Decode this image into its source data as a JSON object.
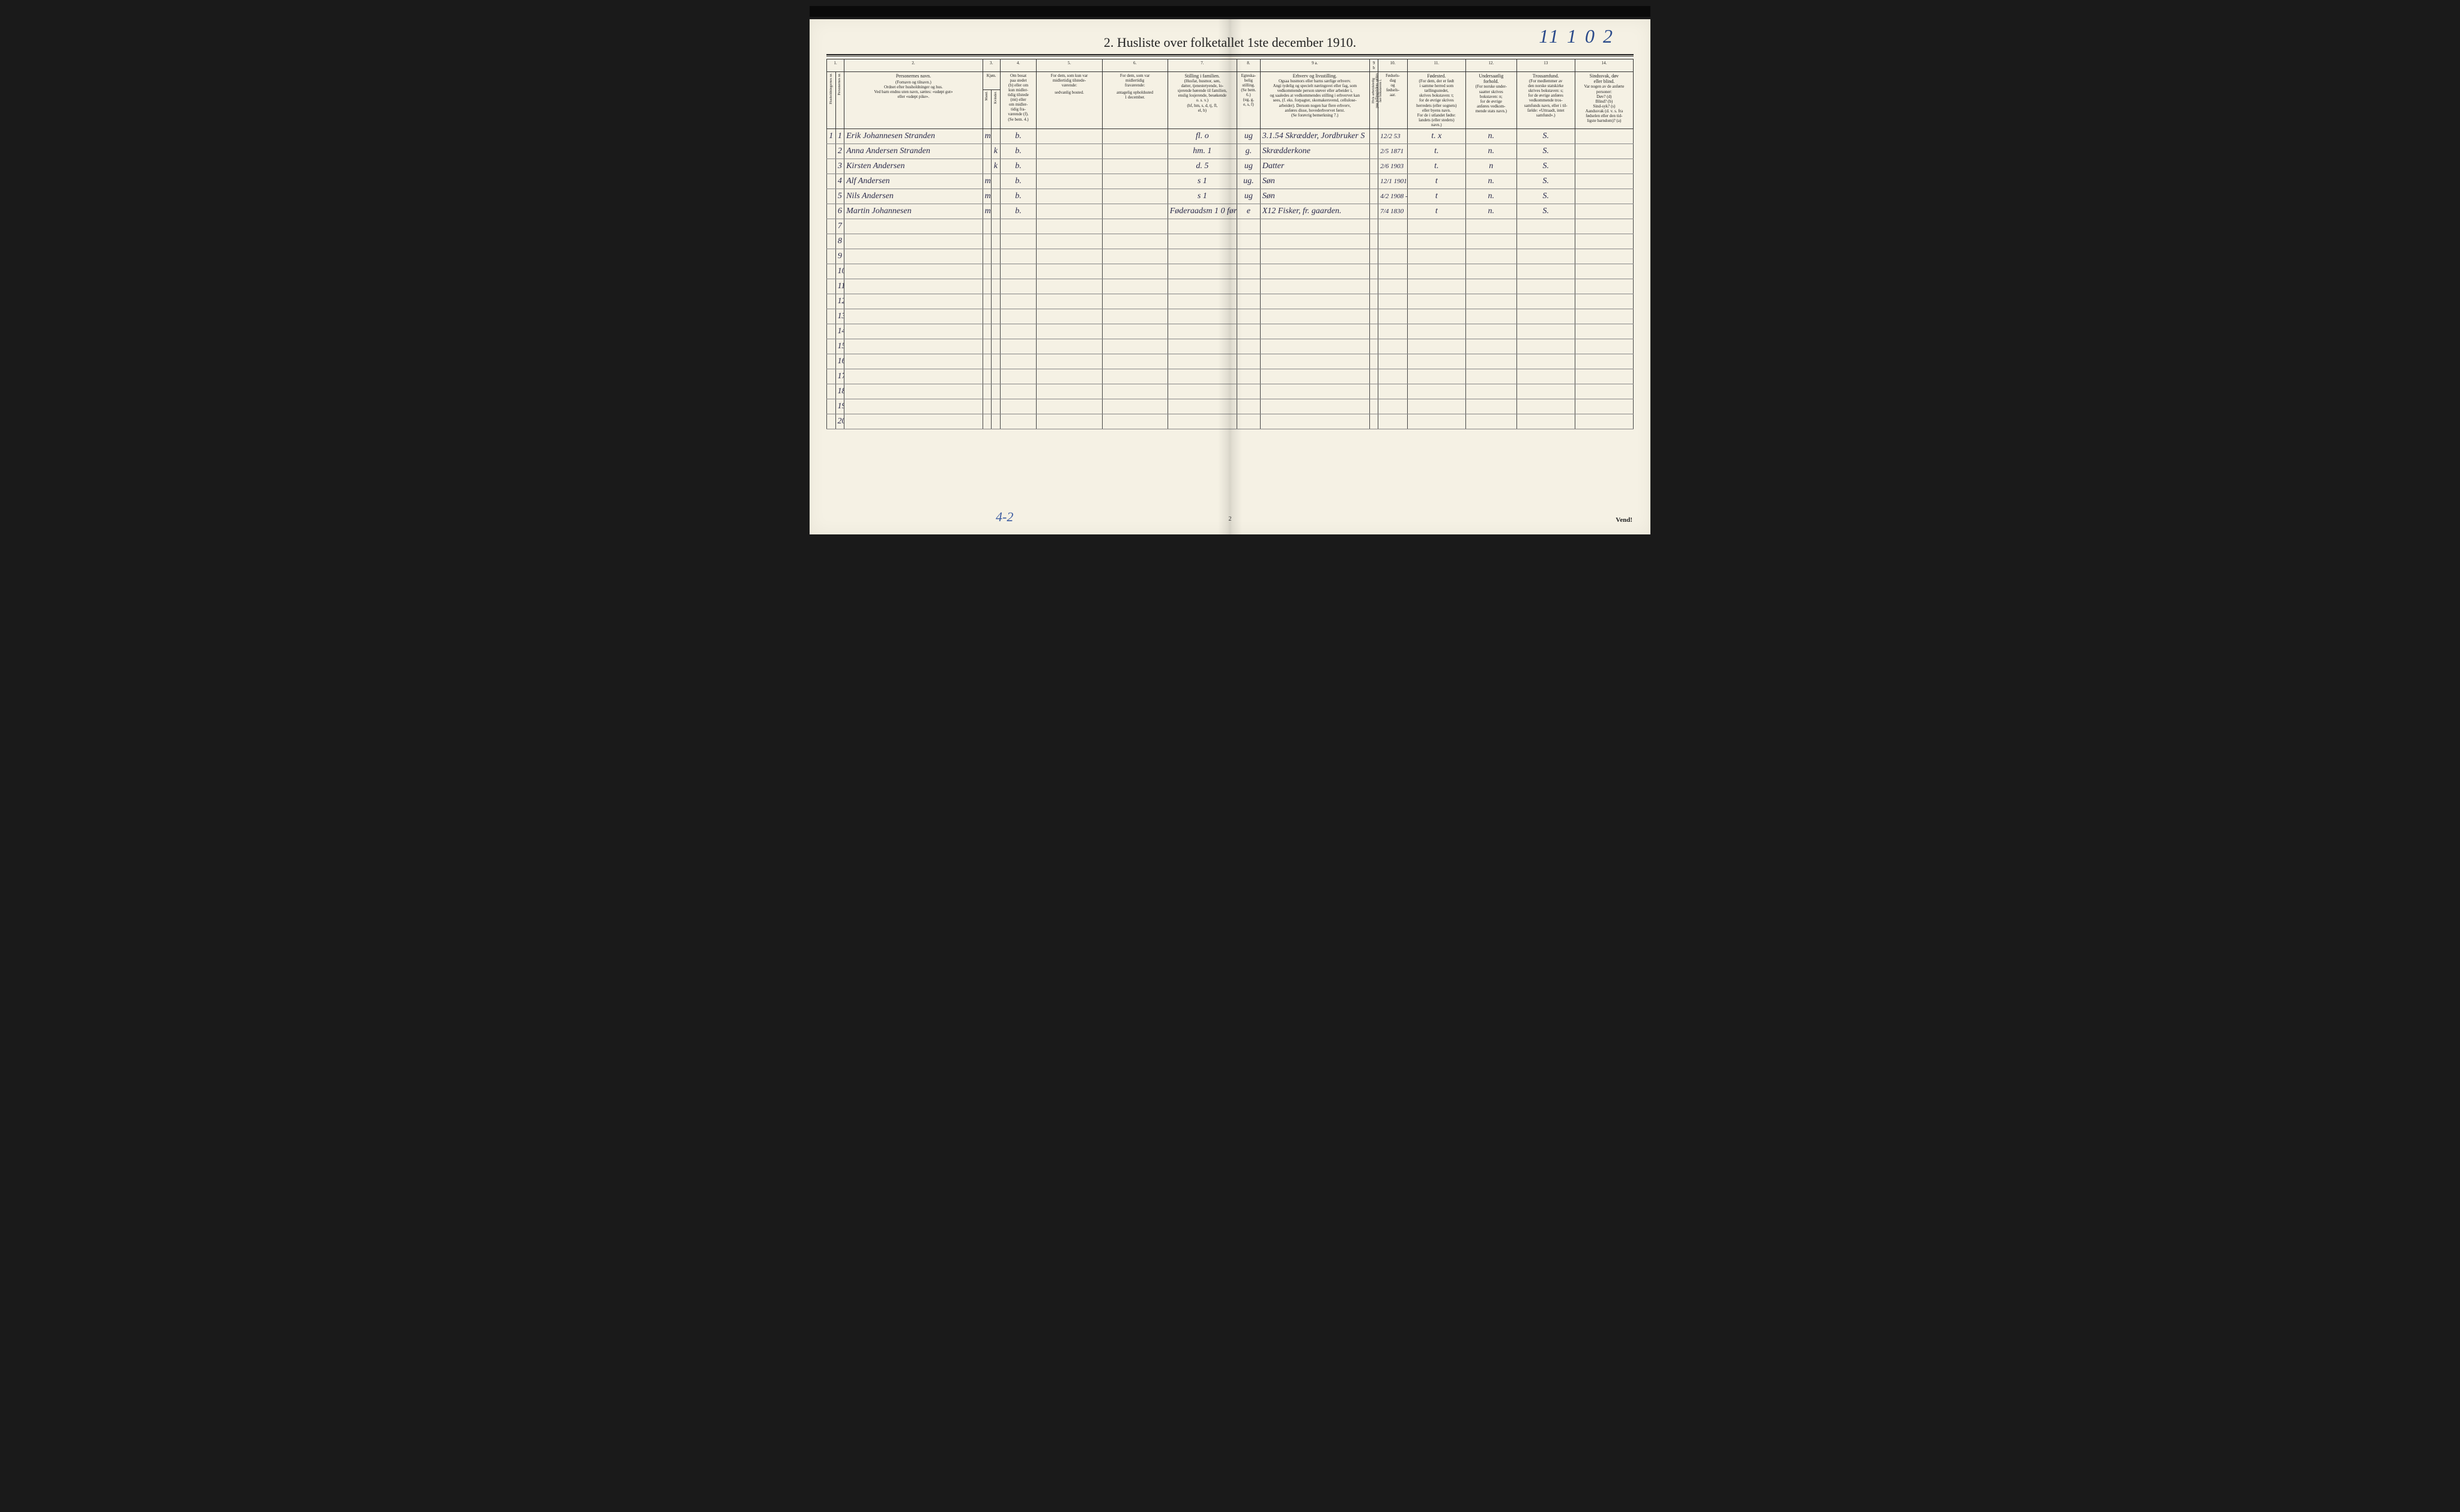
{
  "document": {
    "title": "2.  Husliste over folketallet 1ste december 1910.",
    "handwritten_top_right": "11 1 0 2",
    "footer_handwritten": "4-2",
    "footer_page_number": "2",
    "vend_label": "Vend!"
  },
  "colors": {
    "paper": "#f5f1e4",
    "ink_print": "#222222",
    "ink_handwriting": "#2a2a4a",
    "ink_blue": "#2a4a8a",
    "grid_line": "#444444",
    "background": "#1a1a1a"
  },
  "column_numbers": [
    "1.",
    "",
    "2.",
    "3.",
    "",
    "4.",
    "5.",
    "6.",
    "7.",
    "8.",
    "9 a.",
    "9 b",
    "10.",
    "11.",
    "12.",
    "13",
    "14."
  ],
  "headers": {
    "col1_vert": "Husholdningernes nr.",
    "col1b_vert": "Personernes nr.",
    "col2_title": "Personernes navn.",
    "col2_sub": "(Fornavn og tilnavn.)\nOrdnet efter husholdninger og hus.\nVed barn endnu uten navn, sættes: «udøpt gut»\neller «udøpt pike».",
    "col3_title": "Kjøn.",
    "col3_m": "Mand.",
    "col3_k": "Kvinder.",
    "col3_mk": "m.  k.",
    "col4_title": "Om bosat\npaa stedet\n(b) eller om\nkun midler-\ntidig tilstede\n(mt) eller\nom midler-\ntidig fra-\nværende (f).\n(Se bem. 4.)",
    "col5_title": "For dem, som kun var\nmidlertidig tilstede-\nværende:",
    "col5_sub": "sedvanlig bosted.",
    "col6_title": "For dem, som var\nmidlertidig\nfraværende:",
    "col6_sub": "antagelig opholdssted\n1 december.",
    "col7_title": "Stilling i familien.",
    "col7_sub": "(Husfar, husmor, søn,\ndatter, tjenestetyende, lo-\nsjerende hørende til familien,\nenslig losjerende, besøkende\no. s. v.)\n(hf, hm, s, d, tj, fl,\nel, b)",
    "col8_title": "Egteska-\nbelig\nstilling.",
    "col8_sub": "(Se bem. 6.)\n(ug, g,\ne, s, f)",
    "col9a_title": "Erhverv og livsstilling.",
    "col9a_sub": "Ogsaa husmors eller barns særlige erhverv.\nAngi tydelig og specielt næringsvei eller fag, som\nvedkommende person utøver eller arbeider i,\nog saaledes at vedkommendes stilling i erhvervet kan\nsees, (f. eks. forpagter, skomakersvend, cellulose-\narbeider). Dersom nogen har flere erhverv,\nanføres disse, hovederhvervet først.\n(Se forøvrig bemerkning 7.)",
    "col9b_vert": "Hvis arbeidsledig\npaa tellingstidens sættes\nher bokstaven l.",
    "col10_title": "Fødsels-\ndag\nog\nfødsels-\naar.",
    "col11_title": "Fødested.",
    "col11_sub": "(For dem, der er født\ni samme herred som\ntællingsstedet,\nskrives bokstaven: t;\nfor de øvrige skrives\nherredets (eller sognets)\neller byens navn.\nFor de i utlandet fødte:\nlandets (eller stedets)\nnavn.)",
    "col12_title": "Undersaatlig\nforhold.",
    "col12_sub": "(For norske under-\nsaatter skrives\nbokstaven: n;\nfor de øvrige\nanføres vedkom-\nmende stats navn.)",
    "col13_title": "Trossamfund.",
    "col13_sub": "(For medlemmer av\nden norske statskirke\nskrives bokstaven: s;\nfor de øvrige anføres\nvedkommende tros-\nsamfunds navn, eller i til-\nfælde: «Uttraadt, intet\nsamfund».)",
    "col14_title": "Sindssvak, døv\neller blind.",
    "col14_sub": "Var nogen av de anførte\npersoner:\nDøv?        (d)\nBlind?      (b)\nSind-syk?  (s)\nAandssvak (d. v. s. fra\nfødselen eller den tid-\nligste barndom)?  (a)"
  },
  "rows": [
    {
      "hh": "1",
      "pn": "1",
      "name": "Erik Johannesen Stranden",
      "sex_m": "m",
      "sex_k": "",
      "residence": "b.",
      "away": "",
      "absent": "",
      "family_pos": "fl.   o",
      "marital": "ug",
      "occupation_annot": "3.1.54",
      "occupation": "Skrædder, Jordbruker  S",
      "employ": "",
      "birth": "12/2 53",
      "birthplace": "t.  x",
      "citizen": "n.",
      "religion": "S.",
      "infirm": ""
    },
    {
      "hh": "",
      "pn": "2",
      "name": "Anna Andersen Stranden",
      "sex_m": "",
      "sex_k": "k",
      "residence": "b.",
      "away": "",
      "absent": "",
      "family_pos": "hm.   1",
      "marital": "g.",
      "occupation": "Skrædderkone",
      "employ": "",
      "birth": "2/5 1871",
      "birthplace": "t.",
      "citizen": "n.",
      "religion": "S.",
      "infirm": ""
    },
    {
      "hh": "",
      "pn": "3",
      "name": "Kirsten Andersen",
      "sex_m": "",
      "sex_k": "k",
      "residence": "b.",
      "away": "",
      "absent": "",
      "family_pos": "d.    5",
      "marital": "ug",
      "occupation": "Datter",
      "employ": "",
      "birth": "2/6 1903",
      "birthplace": "t.",
      "citizen": "n",
      "religion": "S.",
      "infirm": ""
    },
    {
      "hh": "",
      "pn": "4",
      "name": "Alf Andersen",
      "sex_m": "m",
      "sex_k": "",
      "residence": "b.",
      "away": "",
      "absent": "",
      "family_pos": "s   1",
      "marital": "ug.",
      "occupation": "Søn",
      "employ": "",
      "birth": "12/1 1901",
      "birthplace": "t",
      "citizen": "n.",
      "religion": "S.",
      "infirm": ""
    },
    {
      "hh": "",
      "pn": "5",
      "name": "Nils Andersen",
      "sex_m": "m",
      "sex_k": "",
      "residence": "b.",
      "away": "",
      "absent": "",
      "family_pos": "s   1",
      "marital": "ug",
      "occupation": "Søn",
      "employ": "",
      "birth": "4/2 1908 -1",
      "birthplace": "t",
      "citizen": "n.",
      "religion": "S.",
      "infirm": ""
    },
    {
      "hh": "",
      "pn": "6",
      "name": "Martin Johannesen",
      "sex_m": "m",
      "sex_k": "",
      "residence": "b.",
      "away": "",
      "absent": "",
      "family_pos": "Føderaadsm 1 0 før",
      "marital": "e",
      "occupation": "X12 Fisker, fr. gaarden.",
      "employ": "",
      "birth": "7/4 1830",
      "birthplace": "t",
      "citizen": "n.",
      "religion": "S.",
      "infirm": ""
    }
  ],
  "empty_row_numbers": [
    "7",
    "8",
    "9",
    "10",
    "11",
    "12",
    "13",
    "14",
    "15",
    "16",
    "17",
    "18",
    "19",
    "20"
  ]
}
